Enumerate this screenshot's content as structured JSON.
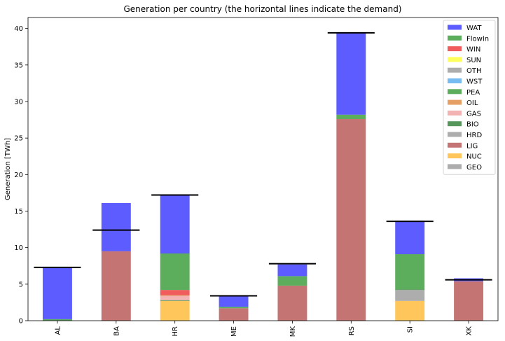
{
  "chart_data": {
    "type": "bar",
    "stacked": true,
    "title": "Generation per country (the horizontal lines indicate the demand)",
    "xlabel": "",
    "ylabel": "Generation [TWh]",
    "ylim": [
      0,
      41.5
    ],
    "yticks": [
      0,
      5,
      10,
      15,
      20,
      25,
      30,
      35,
      40
    ],
    "categories": [
      "AL",
      "BA",
      "HR",
      "ME",
      "MK",
      "RS",
      "SI",
      "XK"
    ],
    "legend": {
      "placement": "top-right"
    },
    "series": [
      {
        "name": "GEO",
        "color": "#999999",
        "values": [
          0,
          0,
          0,
          0,
          0,
          0,
          0,
          0
        ]
      },
      {
        "name": "NUC",
        "color": "#ffb833",
        "values": [
          0,
          0,
          2.7,
          0,
          0,
          0,
          2.7,
          0
        ]
      },
      {
        "name": "LIG",
        "color": "#b55350",
        "values": [
          0,
          9.5,
          0,
          1.7,
          4.8,
          27.6,
          0,
          5.4
        ]
      },
      {
        "name": "HRD",
        "color": "#999999",
        "values": [
          0,
          0,
          0,
          0,
          0,
          0,
          1.5,
          0
        ]
      },
      {
        "name": "BIO",
        "color": "#2e7d32",
        "values": [
          0,
          0,
          0.1,
          0,
          0,
          0,
          0.1,
          0
        ]
      },
      {
        "name": "GAS",
        "color": "#f0a0a0",
        "values": [
          0,
          0,
          0.6,
          0,
          0,
          0,
          0,
          0
        ]
      },
      {
        "name": "OIL",
        "color": "#e08840",
        "values": [
          0,
          0,
          0.1,
          0,
          0,
          0,
          0,
          0
        ]
      },
      {
        "name": "PEA",
        "color": "#339933",
        "values": [
          0,
          0,
          0,
          0,
          0,
          0,
          0,
          0
        ]
      },
      {
        "name": "WST",
        "color": "#55aaee",
        "values": [
          0,
          0,
          0,
          0,
          0,
          0,
          0,
          0
        ]
      },
      {
        "name": "OTH",
        "color": "#999999",
        "values": [
          0,
          0,
          0,
          0,
          0,
          0,
          0,
          0
        ]
      },
      {
        "name": "SUN",
        "color": "#ffff33",
        "values": [
          0,
          0,
          0,
          0,
          0,
          0,
          0,
          0
        ]
      },
      {
        "name": "WIN",
        "color": "#ee3333",
        "values": [
          0,
          0,
          0.7,
          0,
          0,
          0,
          0,
          0
        ]
      },
      {
        "name": "FlowIn",
        "color": "#339933",
        "values": [
          0.2,
          0,
          5.0,
          0.2,
          1.3,
          0.6,
          4.8,
          0
        ]
      },
      {
        "name": "WAT",
        "color": "#3333ff",
        "values": [
          7.0,
          6.6,
          8.0,
          1.5,
          1.6,
          11.2,
          4.6,
          0.4
        ]
      }
    ],
    "legend_order": [
      "WAT",
      "FlowIn",
      "WIN",
      "SUN",
      "OTH",
      "WST",
      "PEA",
      "OIL",
      "GAS",
      "BIO",
      "HRD",
      "LIG",
      "NUC",
      "GEO"
    ],
    "demand": [
      7.3,
      12.4,
      17.2,
      3.4,
      7.8,
      39.4,
      13.6,
      5.6
    ]
  }
}
